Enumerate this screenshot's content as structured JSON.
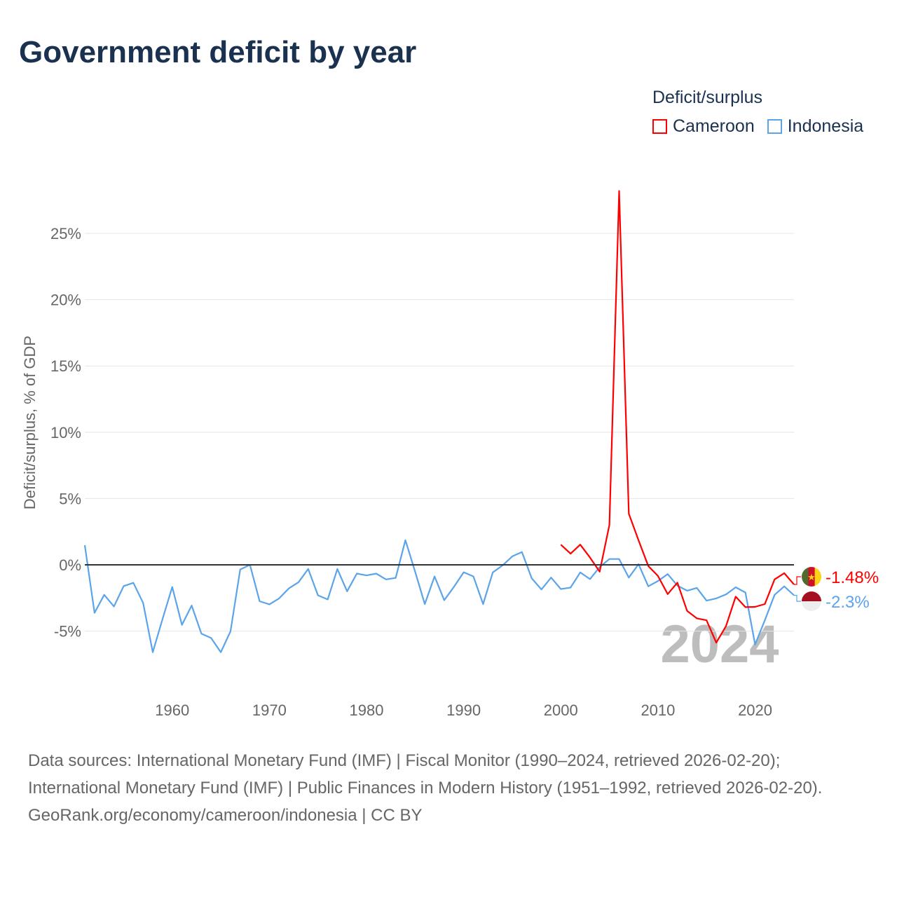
{
  "title": "Government deficit by year",
  "legend": {
    "title": "Deficit/surplus",
    "items": [
      {
        "label": "Cameroon",
        "color": "#ff0000"
      },
      {
        "label": "Indonesia",
        "color": "#5ba4ea"
      }
    ]
  },
  "chart_data": {
    "type": "line",
    "title": "Government deficit by year",
    "xlabel": "",
    "ylabel": "Deficit/surplus, % of GDP",
    "xlim": [
      1951,
      2024
    ],
    "ylim": [
      -9,
      29
    ],
    "yticks": [
      -5,
      0,
      5,
      10,
      15,
      20,
      25
    ],
    "ytick_labels": [
      "-5%",
      "0%",
      "5%",
      "10%",
      "15%",
      "20%",
      "25%"
    ],
    "xticks": [
      1960,
      1970,
      1980,
      1990,
      2000,
      2010,
      2020
    ],
    "xtick_labels": [
      "1960",
      "1970",
      "1980",
      "1990",
      "2000",
      "2010",
      "2020"
    ],
    "grid": true,
    "year_watermark": "2024",
    "series": [
      {
        "name": "Cameroon",
        "color": "#ff0000",
        "start_year": 2000,
        "end_label": "-1.48%",
        "values": [
          1.52,
          0.84,
          1.52,
          0.55,
          -0.52,
          3.0,
          28.2,
          3.86,
          1.85,
          -0.09,
          -0.84,
          -2.21,
          -1.34,
          -3.48,
          -4.04,
          -4.18,
          -5.87,
          -4.62,
          -2.4,
          -3.19,
          -3.17,
          -2.96,
          -1.1,
          -0.63,
          -1.48
        ]
      },
      {
        "name": "Indonesia",
        "color": "#5ba4ea",
        "start_year": 1951,
        "end_label": "-2.3%",
        "values": [
          1.48,
          -3.62,
          -2.26,
          -3.14,
          -1.6,
          -1.36,
          -2.87,
          -6.59,
          -4.09,
          -1.67,
          -4.53,
          -3.07,
          -5.19,
          -5.52,
          -6.59,
          -5.02,
          -0.35,
          0.0,
          -2.75,
          -2.98,
          -2.53,
          -1.78,
          -1.31,
          -0.31,
          -2.3,
          -2.61,
          -0.31,
          -2.0,
          -0.66,
          -0.8,
          -0.66,
          -1.1,
          -0.99,
          1.86,
          -0.5,
          -2.96,
          -0.87,
          -2.67,
          -1.66,
          -0.56,
          -0.87,
          -2.96,
          -0.57,
          -0.05,
          0.64,
          0.96,
          -1.01,
          -1.86,
          -0.96,
          -1.83,
          -1.71,
          -0.57,
          -1.08,
          -0.17,
          0.44,
          0.44,
          -0.96,
          0.05,
          -1.62,
          -1.22,
          -0.7,
          -1.57,
          -1.95,
          -1.74,
          -2.7,
          -2.53,
          -2.23,
          -1.69,
          -2.09,
          -6.01,
          -4.18,
          -2.26,
          -1.62,
          -2.3
        ]
      }
    ]
  },
  "footer": {
    "sources": "Data sources: International Monetary Fund (IMF) | Fiscal Monitor (1990–2024, retrieved 2026-02-20); International Monetary Fund (IMF) | Public Finances in Modern History (1951–1992, retrieved 2026-02-20).",
    "credit": "GeoRank.org/economy/cameroon/indonesia | CC BY"
  }
}
